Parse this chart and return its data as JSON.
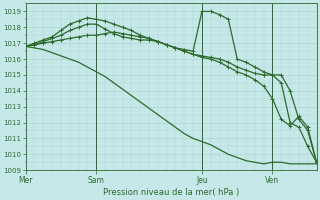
{
  "background_color": "#c6e8e8",
  "grid_color": "#aed4d4",
  "line_color": "#2d6b2d",
  "axis_color": "#2d6b2d",
  "text_color": "#2d6b2d",
  "xlabel_text": "Pression niveau de la mer( hPa )",
  "ylim": [
    1009,
    1019.5
  ],
  "yticks": [
    1009,
    1010,
    1011,
    1012,
    1013,
    1014,
    1015,
    1016,
    1017,
    1018,
    1019
  ],
  "day_labels": [
    "Mer",
    "Sam",
    "Jeu",
    "Ven"
  ],
  "day_positions": [
    0,
    8,
    20,
    28
  ],
  "vline_positions": [
    8,
    20,
    28
  ],
  "n_points": 34,
  "series_nomark": [
    1016.8,
    1016.7,
    1016.6,
    1016.4,
    1016.2,
    1016.0,
    1015.8,
    1015.5,
    1015.2,
    1014.9,
    1014.5,
    1014.1,
    1013.7,
    1013.3,
    1012.9,
    1012.5,
    1012.1,
    1011.7,
    1011.3,
    1011.0,
    1010.8,
    1010.6,
    1010.3,
    1010.0,
    1009.8,
    1009.6,
    1009.5,
    1009.4,
    1009.5,
    1009.5,
    1009.4,
    1009.4,
    1009.4,
    1009.4
  ],
  "series1": [
    1016.8,
    1016.9,
    1017.0,
    1017.1,
    1017.2,
    1017.3,
    1017.4,
    1017.5,
    1017.5,
    1017.6,
    1017.7,
    1017.6,
    1017.5,
    1017.4,
    1017.3,
    1017.1,
    1016.9,
    1016.7,
    1016.5,
    1016.3,
    1016.1,
    1016.0,
    1015.8,
    1015.5,
    1015.2,
    1015.0,
    1014.7,
    1014.3,
    1013.5,
    1012.2,
    1011.8,
    1012.4,
    1011.7,
    1009.5
  ],
  "series2": [
    1016.8,
    1016.9,
    1017.1,
    1017.3,
    1017.5,
    1017.8,
    1018.0,
    1018.2,
    1018.2,
    1017.9,
    1017.6,
    1017.4,
    1017.3,
    1017.2,
    1017.2,
    1017.1,
    1016.9,
    1016.7,
    1016.5,
    1016.3,
    1016.2,
    1016.1,
    1016.0,
    1015.8,
    1015.5,
    1015.3,
    1015.1,
    1015.0,
    1015.0,
    1015.0,
    1014.0,
    1012.2,
    1011.5,
    1009.5
  ],
  "series3": [
    1016.8,
    1017.0,
    1017.2,
    1017.4,
    1017.8,
    1018.2,
    1018.4,
    1018.6,
    1018.5,
    1018.4,
    1018.2,
    1018.0,
    1017.8,
    1017.5,
    1017.3,
    1017.1,
    1016.9,
    1016.7,
    1016.6,
    1016.5,
    1019.0,
    1019.0,
    1018.8,
    1018.5,
    1016.0,
    1015.8,
    1015.5,
    1015.2,
    1015.0,
    1014.5,
    1012.0,
    1011.7,
    1010.5,
    1009.5
  ]
}
